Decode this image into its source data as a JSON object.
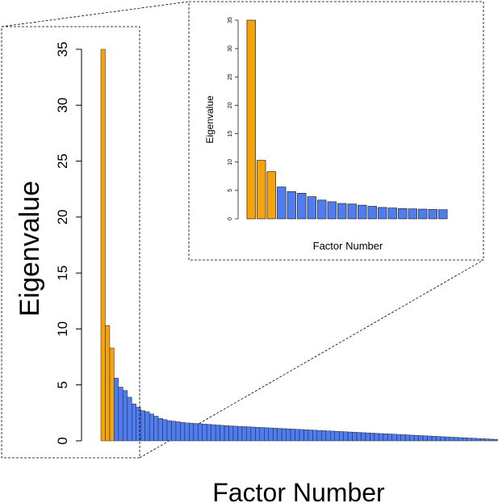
{
  "chart_data": [
    {
      "type": "bar",
      "panel": "main",
      "xlabel": "Factor Number",
      "ylabel": "Eigenvalue",
      "ylim": [
        0,
        35
      ],
      "yticks": [
        0,
        5,
        10,
        15,
        20,
        25,
        30,
        35
      ],
      "highlight_count": 3,
      "values": [
        35.0,
        10.3,
        8.3,
        5.6,
        4.8,
        4.5,
        3.9,
        3.3,
        3.0,
        2.7,
        2.6,
        2.4,
        2.2,
        2.0,
        1.9,
        1.8,
        1.75,
        1.7,
        1.65,
        1.6,
        1.58,
        1.55,
        1.52,
        1.5,
        1.47,
        1.44,
        1.41,
        1.38,
        1.35,
        1.33,
        1.31,
        1.29,
        1.27,
        1.25,
        1.23,
        1.21,
        1.19,
        1.17,
        1.15,
        1.13,
        1.11,
        1.09,
        1.07,
        1.05,
        1.03,
        1.01,
        0.99,
        0.97,
        0.95,
        0.93,
        0.91,
        0.89,
        0.87,
        0.85,
        0.83,
        0.81,
        0.79,
        0.77,
        0.75,
        0.73,
        0.71,
        0.69,
        0.67,
        0.65,
        0.63,
        0.61,
        0.59,
        0.57,
        0.55,
        0.53,
        0.51,
        0.49,
        0.47,
        0.45,
        0.43,
        0.41,
        0.39,
        0.37,
        0.35,
        0.33,
        0.31,
        0.29,
        0.27,
        0.25,
        0.23,
        0.21,
        0.19,
        0.17,
        0.15,
        0.13
      ],
      "colors": {
        "highlight": "#f5a30a",
        "other": "#4f7cf0",
        "outline": "#222222",
        "axis": "#000000"
      }
    },
    {
      "type": "bar",
      "panel": "inset",
      "xlabel": "Factor Number",
      "ylabel": "Eigenvalue",
      "ylim": [
        0,
        35
      ],
      "yticks": [
        0,
        5,
        10,
        15,
        20,
        25,
        30,
        35
      ],
      "highlight_count": 3,
      "values": [
        35.0,
        10.3,
        8.3,
        5.6,
        4.8,
        4.5,
        3.9,
        3.3,
        3.0,
        2.7,
        2.6,
        2.4,
        2.2,
        2.0,
        1.9,
        1.8,
        1.75,
        1.7,
        1.65,
        1.6
      ],
      "colors": {
        "highlight": "#f5a30a",
        "other": "#4f7cf0",
        "outline": "#222222",
        "axis": "#000000"
      }
    }
  ]
}
